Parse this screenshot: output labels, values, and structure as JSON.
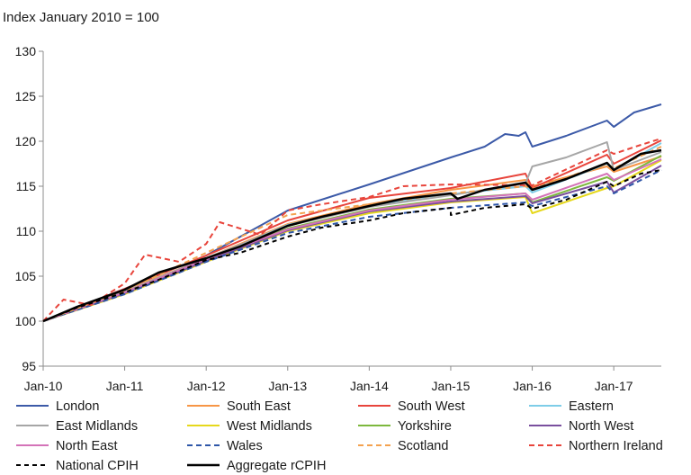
{
  "chart_data": {
    "type": "line",
    "subtitle": "Index January 2010 = 100",
    "xlabel": "",
    "ylabel": "",
    "ylim": [
      95,
      130
    ],
    "y_ticks": [
      "95",
      "100",
      "105",
      "110",
      "115",
      "120",
      "125",
      "130"
    ],
    "x_ticks": [
      "Jan-10",
      "Jan-11",
      "Jan-12",
      "Jan-13",
      "Jan-14",
      "Jan-15",
      "Jan-16",
      "Jan-17"
    ],
    "grid": false,
    "legend_position": "bottom",
    "x_range": [
      "2010-01",
      "2017-08"
    ],
    "series": [
      {
        "name": "London",
        "color": "#3c5aa8",
        "dash": "solid",
        "width": 2,
        "points": [
          [
            "2010-01",
            100
          ],
          [
            "2011-01",
            103.6
          ],
          [
            "2012-01",
            107.3
          ],
          [
            "2013-01",
            112.3
          ],
          [
            "2014-01",
            115.2
          ],
          [
            "2015-01",
            118.2
          ],
          [
            "2015-06",
            119.4
          ],
          [
            "2015-09",
            120.8
          ],
          [
            "2015-11",
            120.6
          ],
          [
            "2015-12",
            121.0
          ],
          [
            "2016-01",
            119.4
          ],
          [
            "2016-06",
            120.6
          ],
          [
            "2016-12",
            122.3
          ],
          [
            "2017-01",
            121.6
          ],
          [
            "2017-04",
            123.2
          ],
          [
            "2017-08",
            124.1
          ]
        ]
      },
      {
        "name": "South East",
        "color": "#f79646",
        "dash": "solid",
        "width": 2,
        "points": [
          [
            "2010-01",
            100
          ],
          [
            "2011-01",
            103.4
          ],
          [
            "2012-01",
            107.0
          ],
          [
            "2013-01",
            110.8
          ],
          [
            "2014-01",
            113.0
          ],
          [
            "2015-01",
            114.6
          ],
          [
            "2015-12",
            115.7
          ],
          [
            "2016-01",
            115.0
          ],
          [
            "2016-12",
            117.2
          ],
          [
            "2017-01",
            116.6
          ],
          [
            "2017-08",
            118.3
          ]
        ]
      },
      {
        "name": "South West",
        "color": "#e8453c",
        "dash": "solid",
        "width": 2,
        "points": [
          [
            "2010-01",
            100
          ],
          [
            "2011-01",
            103.6
          ],
          [
            "2012-01",
            107.3
          ],
          [
            "2013-01",
            111.2
          ],
          [
            "2014-01",
            113.7
          ],
          [
            "2015-01",
            114.8
          ],
          [
            "2015-12",
            116.4
          ],
          [
            "2016-01",
            114.8
          ],
          [
            "2016-12",
            118.5
          ],
          [
            "2017-01",
            117.5
          ],
          [
            "2017-08",
            120.1
          ]
        ]
      },
      {
        "name": "Eastern",
        "color": "#7ecde8",
        "dash": "solid",
        "width": 2,
        "points": [
          [
            "2010-01",
            100
          ],
          [
            "2011-01",
            103.3
          ],
          [
            "2012-01",
            106.9
          ],
          [
            "2013-01",
            110.7
          ],
          [
            "2014-01",
            112.8
          ],
          [
            "2015-01",
            114.1
          ],
          [
            "2015-12",
            115.0
          ],
          [
            "2016-01",
            114.3
          ],
          [
            "2016-12",
            117.5
          ],
          [
            "2017-01",
            116.8
          ],
          [
            "2017-08",
            119.8
          ]
        ]
      },
      {
        "name": "East Midlands",
        "color": "#a6a6a6",
        "dash": "solid",
        "width": 2,
        "points": [
          [
            "2010-01",
            100
          ],
          [
            "2011-01",
            103.3
          ],
          [
            "2012-01",
            107.0
          ],
          [
            "2013-01",
            110.6
          ],
          [
            "2014-01",
            112.7
          ],
          [
            "2015-01",
            114.0
          ],
          [
            "2015-12",
            115.3
          ],
          [
            "2016-01",
            117.2
          ],
          [
            "2016-06",
            118.2
          ],
          [
            "2016-12",
            119.9
          ],
          [
            "2017-01",
            116.8
          ],
          [
            "2017-08",
            118.8
          ]
        ]
      },
      {
        "name": "West Midlands",
        "color": "#e6d81c",
        "dash": "solid",
        "width": 2,
        "points": [
          [
            "2010-01",
            100
          ],
          [
            "2011-01",
            103.0
          ],
          [
            "2012-01",
            106.6
          ],
          [
            "2013-01",
            110.0
          ],
          [
            "2014-01",
            112.0
          ],
          [
            "2015-01",
            113.2
          ],
          [
            "2015-12",
            113.8
          ],
          [
            "2016-01",
            112.0
          ],
          [
            "2016-12",
            114.8
          ],
          [
            "2017-01",
            115.0
          ],
          [
            "2017-08",
            117.9
          ]
        ]
      },
      {
        "name": "Yorkshire",
        "color": "#7db83d",
        "dash": "solid",
        "width": 2,
        "points": [
          [
            "2010-01",
            100
          ],
          [
            "2011-01",
            103.2
          ],
          [
            "2012-01",
            106.8
          ],
          [
            "2013-01",
            110.3
          ],
          [
            "2014-01",
            112.4
          ],
          [
            "2015-01",
            113.6
          ],
          [
            "2015-12",
            114.2
          ],
          [
            "2016-01",
            113.2
          ],
          [
            "2016-12",
            116.0
          ],
          [
            "2017-01",
            115.6
          ],
          [
            "2017-08",
            118.4
          ]
        ]
      },
      {
        "name": "North West",
        "color": "#7a4f9e",
        "dash": "solid",
        "width": 2,
        "points": [
          [
            "2010-01",
            100
          ],
          [
            "2011-01",
            103.1
          ],
          [
            "2012-01",
            106.7
          ],
          [
            "2013-01",
            110.1
          ],
          [
            "2014-01",
            112.2
          ],
          [
            "2015-01",
            113.3
          ],
          [
            "2015-12",
            113.9
          ],
          [
            "2016-01",
            113.1
          ],
          [
            "2016-12",
            115.5
          ],
          [
            "2017-01",
            114.3
          ],
          [
            "2017-08",
            117.3
          ]
        ]
      },
      {
        "name": "North East",
        "color": "#d473b8",
        "dash": "solid",
        "width": 2,
        "points": [
          [
            "2010-01",
            100
          ],
          [
            "2011-01",
            103.2
          ],
          [
            "2012-01",
            106.9
          ],
          [
            "2013-01",
            110.2
          ],
          [
            "2014-01",
            112.3
          ],
          [
            "2015-01",
            113.5
          ],
          [
            "2015-12",
            114.2
          ],
          [
            "2016-01",
            113.5
          ],
          [
            "2016-12",
            116.4
          ],
          [
            "2017-01",
            115.7
          ],
          [
            "2017-08",
            118.0
          ]
        ]
      },
      {
        "name": "Wales",
        "color": "#2e56a8",
        "dash": "6,4",
        "width": 2,
        "points": [
          [
            "2010-01",
            100
          ],
          [
            "2011-01",
            103.0
          ],
          [
            "2012-01",
            106.6
          ],
          [
            "2013-01",
            109.8
          ],
          [
            "2014-01",
            111.6
          ],
          [
            "2015-01",
            112.6
          ],
          [
            "2015-12",
            113.2
          ],
          [
            "2016-01",
            112.8
          ],
          [
            "2016-12",
            115.0
          ],
          [
            "2017-01",
            114.2
          ],
          [
            "2017-08",
            116.8
          ]
        ]
      },
      {
        "name": "Scotland",
        "color": "#f4a24f",
        "dash": "6,4",
        "width": 2,
        "points": [
          [
            "2010-01",
            100
          ],
          [
            "2011-01",
            103.4
          ],
          [
            "2012-01",
            107.6
          ],
          [
            "2013-01",
            111.8
          ],
          [
            "2014-01",
            113.0
          ],
          [
            "2015-01",
            114.2
          ],
          [
            "2015-12",
            115.0
          ],
          [
            "2016-01",
            114.7
          ],
          [
            "2016-12",
            117.5
          ],
          [
            "2017-01",
            117.0
          ],
          [
            "2017-08",
            119.4
          ]
        ]
      },
      {
        "name": "Northern Ireland",
        "color": "#e8453c",
        "dash": "6,4",
        "width": 2,
        "points": [
          [
            "2010-01",
            100
          ],
          [
            "2010-04",
            102.4
          ],
          [
            "2010-08",
            101.8
          ],
          [
            "2011-01",
            104.2
          ],
          [
            "2011-04",
            107.4
          ],
          [
            "2011-09",
            106.6
          ],
          [
            "2012-01",
            108.6
          ],
          [
            "2012-03",
            111.0
          ],
          [
            "2012-09",
            109.6
          ],
          [
            "2013-01",
            112.3
          ],
          [
            "2013-06",
            113.0
          ],
          [
            "2014-01",
            113.8
          ],
          [
            "2014-06",
            115.0
          ],
          [
            "2015-01",
            115.2
          ],
          [
            "2016-01",
            115.1
          ],
          [
            "2016-12",
            119.0
          ],
          [
            "2017-01",
            118.6
          ],
          [
            "2017-05",
            119.6
          ],
          [
            "2017-08",
            120.3
          ]
        ]
      },
      {
        "name": "National CPIH",
        "color": "#000000",
        "dash": "5,4",
        "width": 2,
        "points": [
          [
            "2010-01",
            100
          ],
          [
            "2010-06",
            101.5
          ],
          [
            "2011-01",
            103.2
          ],
          [
            "2011-06",
            104.6
          ],
          [
            "2012-01",
            106.8
          ],
          [
            "2012-06",
            107.6
          ],
          [
            "2013-01",
            109.4
          ],
          [
            "2013-06",
            110.4
          ],
          [
            "2014-01",
            111.2
          ],
          [
            "2014-06",
            112.0
          ],
          [
            "2015-01",
            112.6
          ],
          [
            "2015-01",
            111.8
          ],
          [
            "2015-06",
            112.6
          ],
          [
            "2015-12",
            113.0
          ],
          [
            "2016-01",
            112.5
          ],
          [
            "2016-06",
            113.5
          ],
          [
            "2016-12",
            115.5
          ],
          [
            "2017-01",
            115.0
          ],
          [
            "2017-05",
            116.4
          ],
          [
            "2017-08",
            116.8
          ]
        ]
      },
      {
        "name": "Aggregate rCPIH",
        "color": "#000000",
        "dash": "solid",
        "width": 2.5,
        "points": [
          [
            "2010-01",
            100
          ],
          [
            "2010-06",
            101.6
          ],
          [
            "2011-01",
            103.5
          ],
          [
            "2011-06",
            105.4
          ],
          [
            "2012-01",
            107.0
          ],
          [
            "2012-06",
            108.3
          ],
          [
            "2013-01",
            110.6
          ],
          [
            "2013-06",
            111.6
          ],
          [
            "2014-01",
            112.8
          ],
          [
            "2014-06",
            113.6
          ],
          [
            "2015-01",
            114.2
          ],
          [
            "2015-02",
            113.6
          ],
          [
            "2015-06",
            114.6
          ],
          [
            "2015-12",
            115.4
          ],
          [
            "2016-01",
            114.6
          ],
          [
            "2016-06",
            115.8
          ],
          [
            "2016-12",
            117.6
          ],
          [
            "2017-01",
            116.8
          ],
          [
            "2017-05",
            118.6
          ],
          [
            "2017-08",
            119.0
          ]
        ]
      }
    ]
  }
}
